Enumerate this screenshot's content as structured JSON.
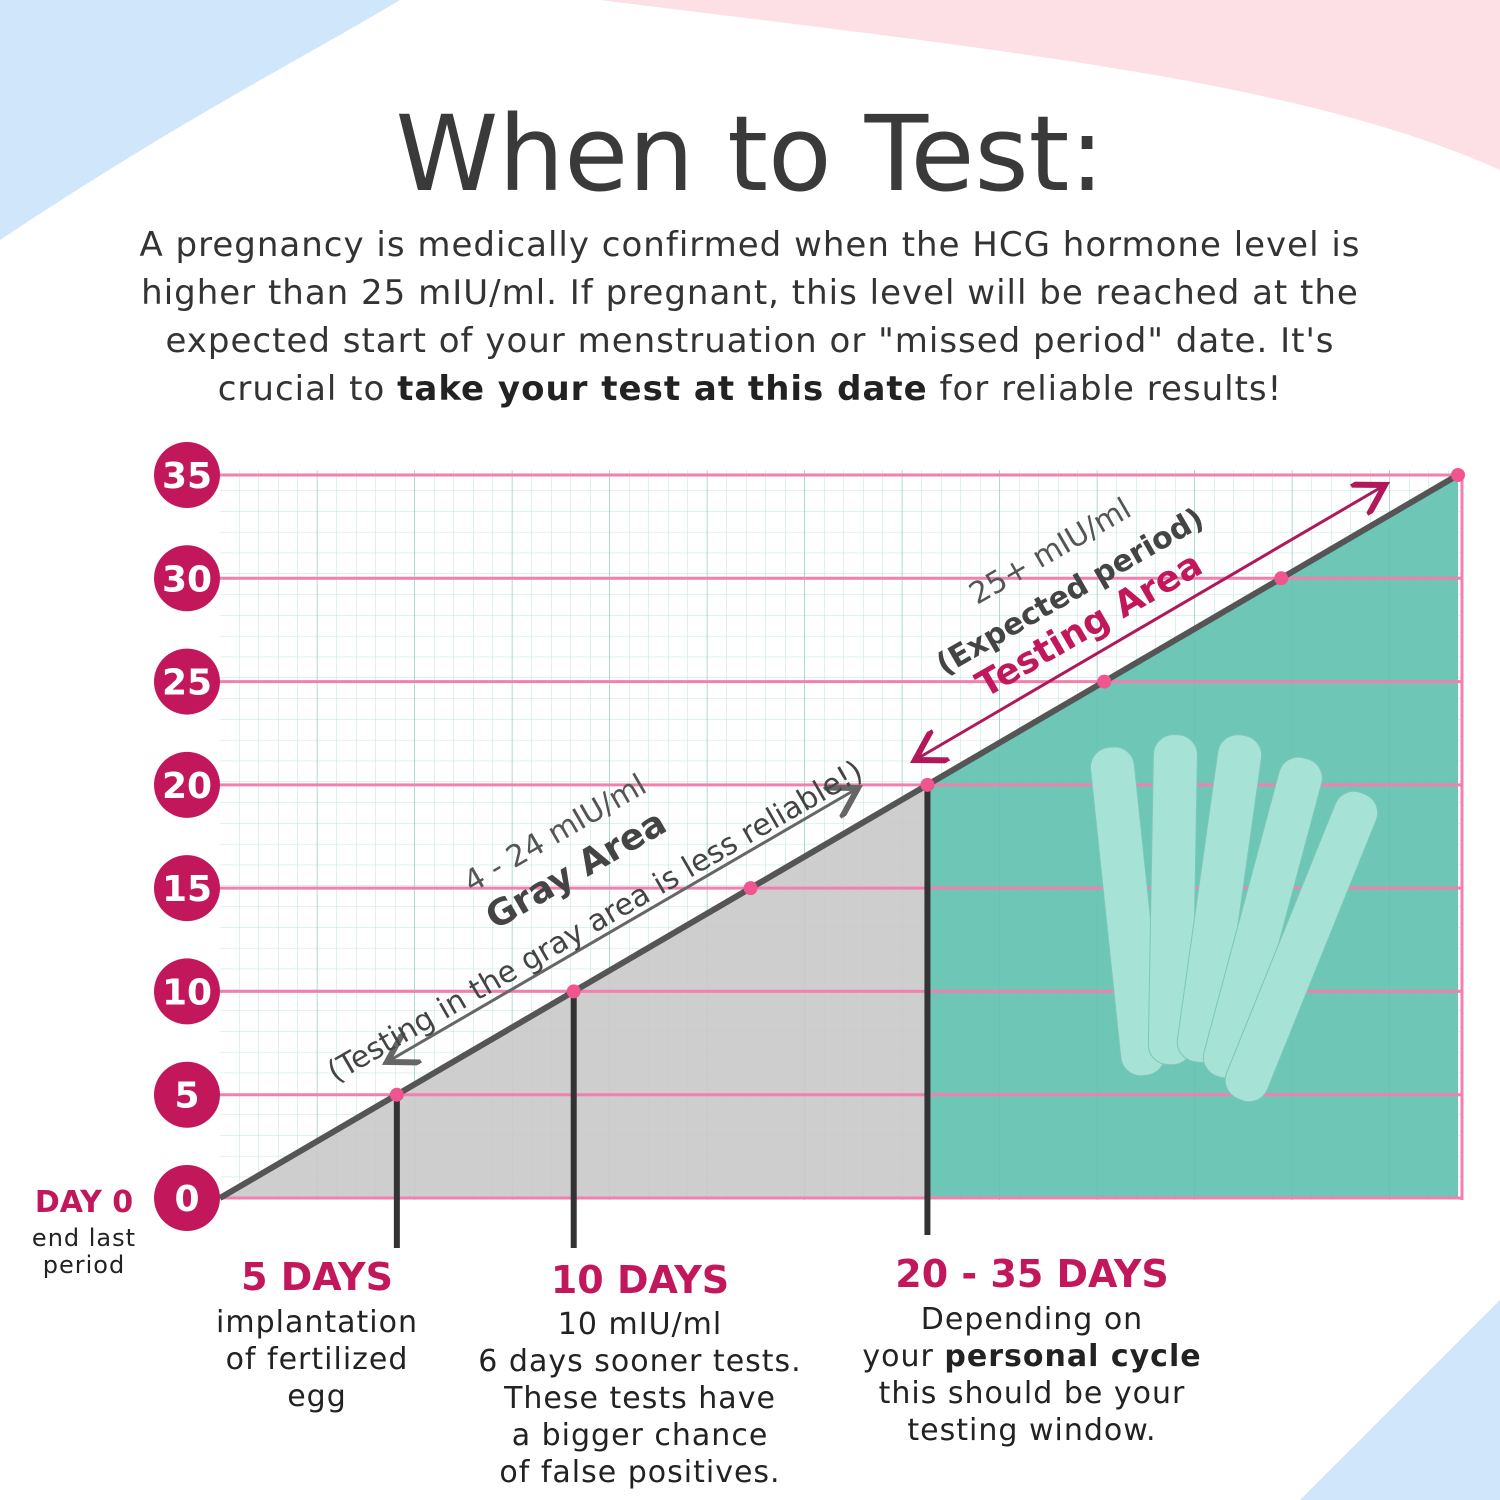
{
  "header": {
    "title": "When to Test:",
    "intro": [
      "A pregnancy is medically confirmed when the HCG hormone level is",
      "higher than 25 mIU/ml. If pregnant, this level will be reached at the",
      "expected start of your menstruation or \"missed period\" date. It's"
    ],
    "intro_last": {
      "before": "crucial to",
      "bold": "take your test at this date",
      "after": "for reliable results!"
    }
  },
  "chart_data": {
    "type": "area",
    "x": [
      0,
      5,
      10,
      15,
      20,
      25,
      30,
      35
    ],
    "values": [
      0,
      5,
      10,
      15,
      20,
      25,
      30,
      35
    ],
    "xlim": [
      0,
      35
    ],
    "ylim": [
      0,
      35
    ],
    "yticks": [
      0,
      5,
      10,
      15,
      20,
      25,
      30,
      35
    ],
    "gray_area": {
      "range": "4 - 24 mIU/ml",
      "name": "Gray Area",
      "note": "(Testing in the gray area is less reliable!)",
      "color": "#c9c9c9"
    },
    "testing_area": {
      "range": "25+ mIU/ml",
      "note": "(Expected period)",
      "name": "Testing Area",
      "color": "#5ec1ae"
    },
    "day0": {
      "heading": "DAY 0",
      "lines": [
        "end last",
        "period"
      ]
    },
    "columns": [
      {
        "heading": "5 DAYS",
        "lines": [
          "implantation",
          "of fertilized",
          "egg"
        ]
      },
      {
        "heading": "10 DAYS",
        "lines": [
          "10 mIU/ml",
          "6 days sooner tests.",
          "These tests have",
          "a bigger chance",
          "of false positives."
        ]
      },
      {
        "heading": "20 - 35 DAYS",
        "lines": [
          "Depending on",
          "your",
          "personal cycle",
          "this should be your",
          "testing window."
        ]
      }
    ]
  }
}
